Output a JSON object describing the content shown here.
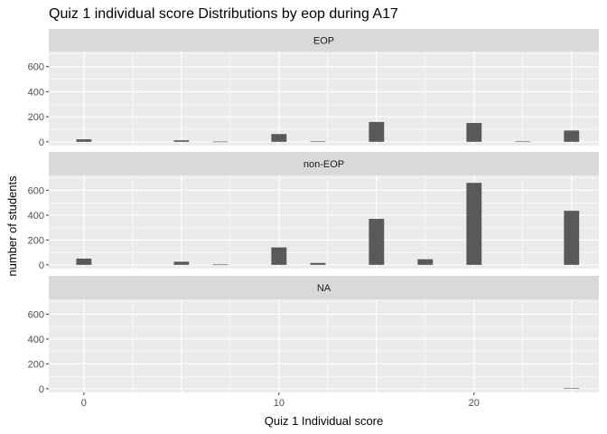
{
  "chart_data": {
    "type": "bar",
    "title": "Quiz 1 individual score Distributions by eop during A17",
    "xlabel": "Quiz 1 Individual score",
    "ylabel": "number of students",
    "xlim": [
      -1.8,
      26.4
    ],
    "ylim": [
      -30,
      720
    ],
    "x_ticks": [
      0,
      10,
      20
    ],
    "y_ticks": [
      0,
      200,
      400,
      600
    ],
    "bar_width": 0.78,
    "grid": true,
    "colors": {
      "bar": "#595959",
      "panel_background": "#ebebeb",
      "strip_background": "#d9d9d9",
      "grid_major": "#ffffff",
      "tick_text": "#4d4d4d"
    },
    "panels": [
      {
        "label": "EOP",
        "bars": [
          {
            "x": 0,
            "y": 20
          },
          {
            "x": 5,
            "y": 12
          },
          {
            "x": 7,
            "y": 2
          },
          {
            "x": 10,
            "y": 62
          },
          {
            "x": 12,
            "y": 3
          },
          {
            "x": 15,
            "y": 158
          },
          {
            "x": 20,
            "y": 150
          },
          {
            "x": 22.5,
            "y": 3
          },
          {
            "x": 25,
            "y": 90
          }
        ]
      },
      {
        "label": "non-EOP",
        "bars": [
          {
            "x": 0,
            "y": 50
          },
          {
            "x": 5,
            "y": 25
          },
          {
            "x": 7,
            "y": 3
          },
          {
            "x": 10,
            "y": 140
          },
          {
            "x": 12,
            "y": 15
          },
          {
            "x": 15,
            "y": 370
          },
          {
            "x": 17.5,
            "y": 45
          },
          {
            "x": 20,
            "y": 660
          },
          {
            "x": 25,
            "y": 435
          }
        ]
      },
      {
        "label": "NA",
        "bars": [
          {
            "x": 25,
            "y": 4
          }
        ]
      }
    ]
  }
}
